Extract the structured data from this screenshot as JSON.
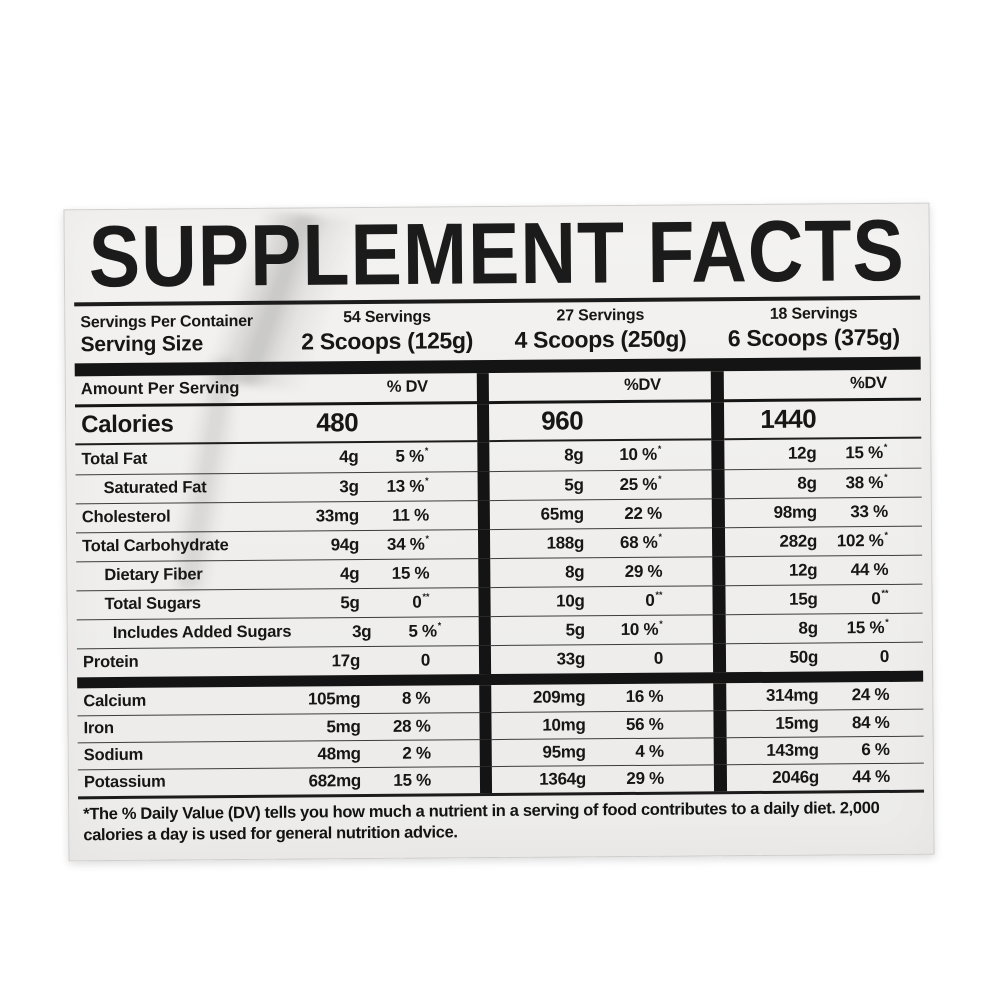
{
  "label": {
    "title": "SUPPLEMENT FACTS",
    "colors": {
      "panel_bg": "#f1f0ee",
      "text": "#161616",
      "bar_black": "#141414"
    },
    "serving_info": {
      "servings_per_container_label": "Servings Per Container",
      "serving_size_label": "Serving Size",
      "columns": [
        {
          "servings": "54 Servings",
          "size": "2 Scoops (125g)"
        },
        {
          "servings": "27 Servings",
          "size": "4 Scoops (250g)"
        },
        {
          "servings": "18 Servings",
          "size": "6 Scoops (375g)"
        }
      ]
    },
    "table": {
      "amount_per_serving_label": "Amount Per Serving",
      "dv_headers": [
        "% DV",
        "%DV",
        "%DV"
      ],
      "calories": {
        "label": "Calories",
        "values": [
          "480",
          "960",
          "1440"
        ]
      },
      "nutrient_rows": [
        {
          "label": "Total Fat",
          "indent": 0,
          "cells": [
            {
              "amt": "4g",
              "dv": "5 %",
              "sup": "*"
            },
            {
              "amt": "8g",
              "dv": "10 %",
              "sup": "*"
            },
            {
              "amt": "12g",
              "dv": "15 %",
              "sup": "*"
            }
          ]
        },
        {
          "label": "Saturated Fat",
          "indent": 1,
          "cells": [
            {
              "amt": "3g",
              "dv": "13 %",
              "sup": "*"
            },
            {
              "amt": "5g",
              "dv": "25 %",
              "sup": "*"
            },
            {
              "amt": "8g",
              "dv": "38 %",
              "sup": "*"
            }
          ]
        },
        {
          "label": "Cholesterol",
          "indent": 0,
          "cells": [
            {
              "amt": "33mg",
              "dv": "11 %",
              "sup": ""
            },
            {
              "amt": "65mg",
              "dv": "22 %",
              "sup": ""
            },
            {
              "amt": "98mg",
              "dv": "33 %",
              "sup": ""
            }
          ]
        },
        {
          "label": "Total Carbohydrate",
          "indent": 0,
          "cells": [
            {
              "amt": "94g",
              "dv": "34 %",
              "sup": "*"
            },
            {
              "amt": "188g",
              "dv": "68 %",
              "sup": "*"
            },
            {
              "amt": "282g",
              "dv": "102 %",
              "sup": "*"
            }
          ]
        },
        {
          "label": "Dietary Fiber",
          "indent": 1,
          "cells": [
            {
              "amt": "4g",
              "dv": "15 %",
              "sup": ""
            },
            {
              "amt": "8g",
              "dv": "29 %",
              "sup": ""
            },
            {
              "amt": "12g",
              "dv": "44 %",
              "sup": ""
            }
          ]
        },
        {
          "label": "Total Sugars",
          "indent": 1,
          "cells": [
            {
              "amt": "5g",
              "dv": "0",
              "sup": "**"
            },
            {
              "amt": "10g",
              "dv": "0",
              "sup": "**"
            },
            {
              "amt": "15g",
              "dv": "0",
              "sup": "**"
            }
          ]
        },
        {
          "label": "Includes Added Sugars",
          "indent": 2,
          "cells": [
            {
              "amt": "3g",
              "dv": "5 %",
              "sup": "*"
            },
            {
              "amt": "5g",
              "dv": "10 %",
              "sup": "*"
            },
            {
              "amt": "8g",
              "dv": "15 %",
              "sup": "*"
            }
          ]
        },
        {
          "label": "Protein",
          "indent": 0,
          "cells": [
            {
              "amt": "17g",
              "dv": "0",
              "sup": ""
            },
            {
              "amt": "33g",
              "dv": "0",
              "sup": ""
            },
            {
              "amt": "50g",
              "dv": "0",
              "sup": ""
            }
          ]
        }
      ],
      "mineral_rows": [
        {
          "label": "Calcium",
          "cells": [
            {
              "amt": "105mg",
              "dv": "8 %",
              "sup": ""
            },
            {
              "amt": "209mg",
              "dv": "16 %",
              "sup": ""
            },
            {
              "amt": "314mg",
              "dv": "24 %",
              "sup": ""
            }
          ]
        },
        {
          "label": "Iron",
          "cells": [
            {
              "amt": "5mg",
              "dv": "28 %",
              "sup": ""
            },
            {
              "amt": "10mg",
              "dv": "56 %",
              "sup": ""
            },
            {
              "amt": "15mg",
              "dv": "84 %",
              "sup": ""
            }
          ]
        },
        {
          "label": "Sodium",
          "cells": [
            {
              "amt": "48mg",
              "dv": "2 %",
              "sup": ""
            },
            {
              "amt": "95mg",
              "dv": "4 %",
              "sup": ""
            },
            {
              "amt": "143mg",
              "dv": "6 %",
              "sup": ""
            }
          ]
        },
        {
          "label": "Potassium",
          "cells": [
            {
              "amt": "682mg",
              "dv": "15 %",
              "sup": ""
            },
            {
              "amt": "1364g",
              "dv": "29 %",
              "sup": ""
            },
            {
              "amt": "2046g",
              "dv": "44 %",
              "sup": ""
            }
          ]
        }
      ]
    },
    "footnote": "*The % Daily Value (DV) tells you how much a nutrient in a serving of food contributes to a daily diet. 2,000 calories a day is used for general nutrition advice."
  }
}
